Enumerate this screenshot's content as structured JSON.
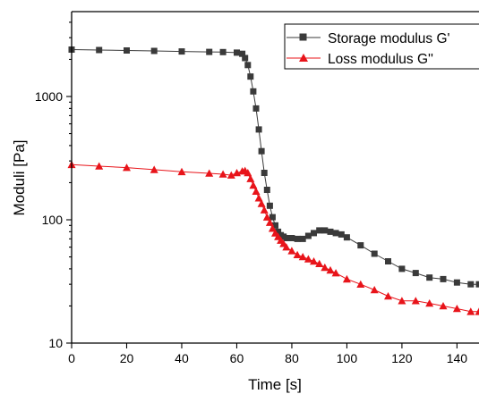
{
  "chart_data": {
    "type": "scatter",
    "xlabel": "Time [s]",
    "ylabel": "Moduli [Pa]",
    "xlim": [
      0,
      148
    ],
    "ylim": [
      10,
      5000
    ],
    "yscale": "log",
    "xticks": [
      0,
      20,
      40,
      60,
      80,
      100,
      120,
      140
    ],
    "yticks": [
      10,
      100,
      1000
    ],
    "legend_position": "top-right",
    "grid": false,
    "series": [
      {
        "name": "Storage modulus G'",
        "color": "#3a3a3a",
        "marker": "square",
        "x": [
          0,
          10,
          20,
          30,
          40,
          50,
          55,
          60,
          62,
          63,
          64,
          65,
          66,
          67,
          68,
          69,
          70,
          71,
          72,
          73,
          74,
          75,
          76,
          77,
          78,
          80,
          82,
          84,
          86,
          88,
          90,
          92,
          94,
          96,
          98,
          100,
          105,
          110,
          115,
          120,
          125,
          130,
          135,
          140,
          145,
          148
        ],
        "y": [
          2400,
          2380,
          2360,
          2340,
          2320,
          2300,
          2290,
          2270,
          2220,
          2050,
          1800,
          1450,
          1100,
          800,
          540,
          360,
          240,
          175,
          130,
          105,
          90,
          80,
          75,
          73,
          71,
          71,
          70,
          70,
          74,
          78,
          82,
          82,
          80,
          78,
          76,
          72,
          62,
          53,
          46,
          40,
          37,
          34,
          33,
          31,
          30,
          30
        ]
      },
      {
        "name": "Loss modulus G''",
        "color": "#e8141a",
        "marker": "triangle",
        "x": [
          0,
          10,
          20,
          30,
          40,
          50,
          55,
          58,
          60,
          62,
          63,
          64,
          65,
          66,
          67,
          68,
          69,
          70,
          71,
          72,
          73,
          74,
          75,
          76,
          77,
          78,
          80,
          82,
          84,
          86,
          88,
          90,
          92,
          94,
          96,
          100,
          105,
          110,
          115,
          120,
          125,
          130,
          135,
          140,
          145,
          148
        ],
        "y": [
          280,
          272,
          265,
          255,
          245,
          238,
          234,
          230,
          240,
          248,
          250,
          240,
          215,
          190,
          170,
          150,
          135,
          120,
          105,
          95,
          85,
          78,
          73,
          68,
          64,
          60,
          56,
          52,
          50,
          48,
          46,
          44,
          41,
          39,
          37,
          33,
          30,
          27,
          24,
          22,
          22,
          21,
          20,
          19,
          18,
          18
        ]
      }
    ]
  }
}
